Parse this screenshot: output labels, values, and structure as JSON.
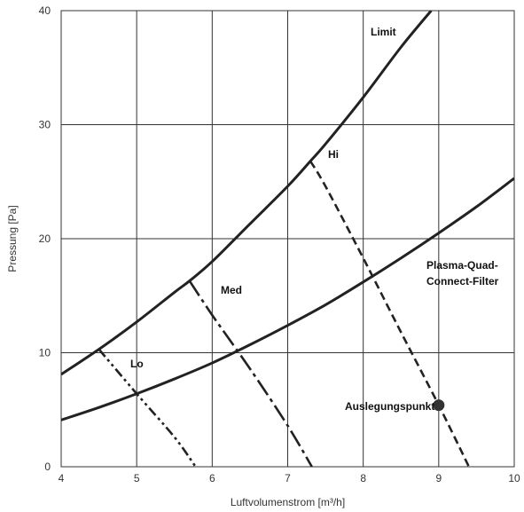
{
  "chart_data": {
    "type": "line",
    "title": "",
    "xlabel": "Luftvolumenstrom [m³/h]",
    "ylabel": "Pressung [Pa]",
    "xlim": [
      4,
      10
    ],
    "ylim": [
      0,
      40
    ],
    "xticks": [
      4,
      5,
      6,
      7,
      8,
      9,
      10
    ],
    "yticks": [
      0,
      10,
      20,
      30,
      40
    ],
    "grid": true,
    "series": [
      {
        "name": "Limit",
        "style": "solid",
        "x": [
          4,
          4.5,
          5,
          5.5,
          5.7,
          6,
          6.5,
          7,
          7.3,
          7.5,
          8,
          8.5,
          8.9
        ],
        "y": [
          8.1,
          10.3,
          12.7,
          15.3,
          16.3,
          18.0,
          21.3,
          24.6,
          26.8,
          28.3,
          32.4,
          36.8,
          40.0
        ]
      },
      {
        "name": "Plasma-Quad-Connect-Filter",
        "style": "solid",
        "x": [
          4,
          4.5,
          5,
          5.5,
          6,
          6.5,
          7,
          7.5,
          8,
          8.5,
          9,
          9.5,
          10
        ],
        "y": [
          4.1,
          5.2,
          6.4,
          7.7,
          9.1,
          10.7,
          12.4,
          14.2,
          16.2,
          18.3,
          20.5,
          22.8,
          25.3
        ]
      },
      {
        "name": "Lo",
        "style": "dash-dot-dot",
        "x": [
          4.5,
          5.0,
          5.5,
          5.78
        ],
        "y": [
          10.3,
          6.4,
          2.6,
          0
        ]
      },
      {
        "name": "Med",
        "style": "dash-dot",
        "x": [
          5.7,
          6.0,
          6.5,
          7.0,
          7.32
        ],
        "y": [
          16.3,
          13.3,
          8.6,
          3.6,
          0
        ]
      },
      {
        "name": "Hi",
        "style": "dashed",
        "x": [
          7.3,
          7.5,
          8.0,
          8.5,
          9.0,
          9.4
        ],
        "y": [
          26.8,
          24.6,
          18.3,
          11.8,
          5.4,
          0
        ]
      }
    ],
    "annotations": [
      {
        "text": "Auslegungspunkt",
        "x": 9.0,
        "y": 5.4,
        "marker": "filled-circle"
      }
    ],
    "colors": {
      "line": "#222222",
      "grid": "#333333",
      "marker": "#333333"
    }
  }
}
